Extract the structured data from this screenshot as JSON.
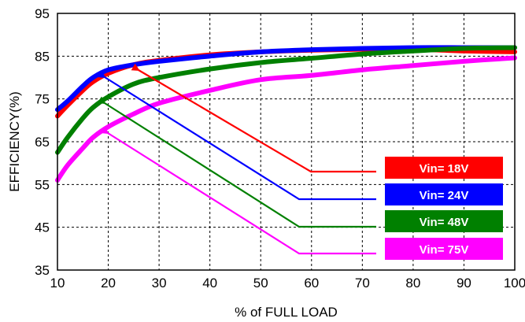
{
  "chart_data": {
    "type": "line",
    "xlabel": "% of FULL LOAD",
    "ylabel": "EFFICIENCY(%)",
    "xlim": [
      10,
      100
    ],
    "ylim": [
      35,
      95
    ],
    "xticks": [
      10,
      20,
      30,
      40,
      50,
      60,
      70,
      80,
      90,
      100
    ],
    "yticks": [
      35,
      45,
      55,
      65,
      75,
      85,
      95
    ],
    "grid": "dashed",
    "legend_position": "bottom-right",
    "series": [
      {
        "name": "Vin= 18V",
        "color": "#ff0000",
        "x": [
          10,
          12,
          15,
          17,
          20,
          25,
          30,
          40,
          50,
          60,
          70,
          80,
          90,
          100
        ],
        "y": [
          71,
          73.5,
          77,
          79,
          81,
          83,
          84,
          85.3,
          86,
          86.4,
          86.6,
          86.6,
          86.2,
          86
        ]
      },
      {
        "name": "Vin= 24V",
        "color": "#0000ff",
        "x": [
          10,
          12,
          15,
          17,
          20,
          25,
          30,
          40,
          50,
          60,
          70,
          80,
          90,
          100
        ],
        "y": [
          72.5,
          74.5,
          78,
          80,
          81.8,
          83,
          83.8,
          85,
          86,
          86.5,
          86.8,
          87,
          87,
          87
        ]
      },
      {
        "name": "Vin= 48V",
        "color": "#008000",
        "x": [
          10,
          12,
          15,
          17,
          20,
          25,
          30,
          40,
          50,
          60,
          70,
          80,
          90,
          100
        ],
        "y": [
          62.5,
          66,
          70.5,
          73,
          75.5,
          78.5,
          80,
          82,
          83.5,
          84.5,
          85.5,
          86.2,
          86.8,
          87
        ]
      },
      {
        "name": "Vin= 75V",
        "color": "#ff00ff",
        "x": [
          10,
          12,
          15,
          17,
          20,
          25,
          30,
          40,
          50,
          60,
          70,
          80,
          90,
          100
        ],
        "y": [
          56,
          59.5,
          63.5,
          66,
          68.5,
          71.5,
          74,
          77,
          79.5,
          80.5,
          81.8,
          82.8,
          83.8,
          84.6
        ]
      }
    ]
  }
}
